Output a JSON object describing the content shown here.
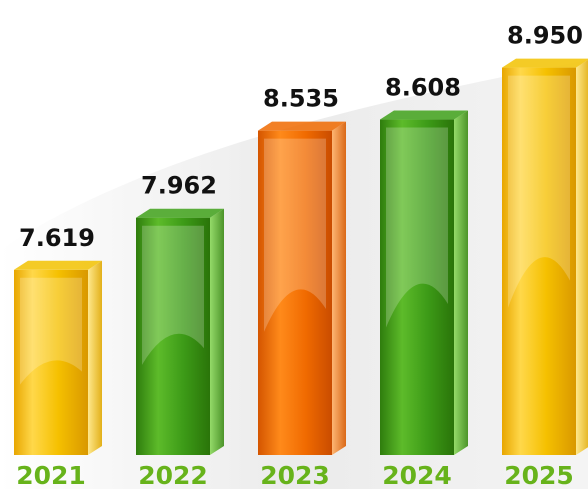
{
  "chart_data": {
    "type": "bar",
    "categories": [
      "2021",
      "2022",
      "2023",
      "2024",
      "2025"
    ],
    "values": [
      7.619,
      7.962,
      8.535,
      8.608,
      8.95
    ],
    "value_labels": [
      "7.619",
      "7.962",
      "8.535",
      "8.608",
      "8.950"
    ],
    "title": "",
    "xlabel": "",
    "ylabel": "",
    "ylim": [
      6.4,
      9.0
    ],
    "grid": false,
    "legend": "none",
    "style": "3d-glossy-bars"
  },
  "colors": {
    "yellow": "#f2c200",
    "green": "#3fa11a",
    "orange": "#f06a00",
    "category_text": "#67b31b",
    "value_text": "#111111"
  },
  "bar_colors": [
    "yellow",
    "green",
    "orange",
    "green",
    "yellow"
  ]
}
